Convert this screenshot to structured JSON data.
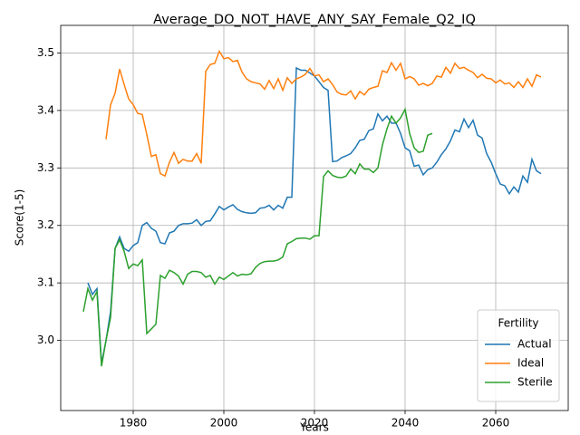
{
  "chart_data": {
    "type": "line",
    "title": "Average_DO_NOT_HAVE_ANY_SAY_Female_Q2_IQ",
    "x_label": "Years",
    "y_label": "Score(1-5)",
    "legend_title": "Fertility",
    "legend_position": "lower right",
    "grid": true,
    "xlim": [
      1964,
      2076
    ],
    "xticks": [
      1980,
      2000,
      2020,
      2040,
      2060
    ],
    "ylim": [
      2.878,
      3.548
    ],
    "yticks": [
      {
        "value": 3,
        "label": "3.0"
      },
      3.1,
      3.2,
      3.3,
      3.4,
      3.5
    ],
    "x": [
      1969,
      1970,
      1971,
      1972,
      1973,
      1974,
      1975,
      1976,
      1977,
      1978,
      1979,
      1980,
      1981,
      1982,
      1983,
      1984,
      1985,
      1986,
      1987,
      1988,
      1989,
      1990,
      1991,
      1992,
      1993,
      1994,
      1995,
      1996,
      1997,
      1998,
      1999,
      2000,
      2001,
      2002,
      2003,
      2004,
      2005,
      2006,
      2007,
      2008,
      2009,
      2010,
      2011,
      2012,
      2013,
      2014,
      2015,
      2016,
      2017,
      2018,
      2019,
      2020,
      2021,
      2022,
      2023,
      2024,
      2025,
      2026,
      2027,
      2028,
      2029,
      2030,
      2031,
      2032,
      2033,
      2034,
      2035,
      2036,
      2037,
      2038,
      2039,
      2040,
      2041,
      2042,
      2043,
      2044,
      2045,
      2046,
      2047,
      2048,
      2049,
      2050,
      2051,
      2052,
      2053,
      2054,
      2055,
      2056,
      2057,
      2058,
      2059,
      2060,
      2061,
      2062,
      2063,
      2064,
      2065,
      2066,
      2067,
      2068,
      2069,
      2070
    ],
    "series": [
      {
        "name": "Actual",
        "color": "#1f77b4",
        "values": [
          null,
          3.1,
          3.08,
          3.09,
          2.96,
          3.0,
          3.05,
          3.16,
          3.18,
          3.16,
          3.155,
          3.165,
          3.17,
          3.2,
          3.205,
          3.195,
          3.19,
          3.17,
          3.168,
          3.187,
          3.19,
          3.2,
          3.203,
          3.203,
          3.204,
          3.21,
          3.2,
          3.207,
          3.208,
          3.22,
          3.233,
          3.227,
          3.232,
          3.236,
          3.228,
          3.224,
          3.222,
          3.221,
          3.222,
          3.23,
          3.231,
          3.235,
          3.227,
          3.235,
          3.23,
          3.249,
          3.249,
          3.474,
          3.47,
          3.47,
          3.465,
          3.46,
          3.45,
          3.44,
          3.435,
          3.311,
          3.312,
          3.318,
          3.321,
          3.325,
          3.335,
          3.348,
          3.35,
          3.365,
          3.368,
          3.394,
          3.382,
          3.39,
          3.378,
          3.378,
          3.36,
          3.335,
          3.33,
          3.303,
          3.305,
          3.288,
          3.297,
          3.3,
          3.31,
          3.323,
          3.333,
          3.347,
          3.366,
          3.363,
          3.385,
          3.37,
          3.383,
          3.357,
          3.352,
          3.325,
          3.31,
          3.29,
          3.272,
          3.269,
          3.255,
          3.267,
          3.258,
          3.286,
          3.275,
          3.315,
          3.295,
          3.29
        ]
      },
      {
        "name": "Ideal",
        "color": "#ff7f0e",
        "values": [
          null,
          null,
          null,
          null,
          null,
          3.35,
          3.41,
          3.43,
          3.472,
          3.445,
          3.42,
          3.41,
          3.395,
          3.393,
          3.358,
          3.32,
          3.323,
          3.29,
          3.286,
          3.31,
          3.327,
          3.308,
          3.315,
          3.312,
          3.312,
          3.325,
          3.308,
          3.468,
          3.48,
          3.482,
          3.503,
          3.49,
          3.492,
          3.485,
          3.487,
          3.467,
          3.455,
          3.45,
          3.448,
          3.446,
          3.437,
          3.452,
          3.438,
          3.455,
          3.435,
          3.457,
          3.447,
          3.455,
          3.458,
          3.463,
          3.473,
          3.46,
          3.462,
          3.45,
          3.455,
          3.445,
          3.432,
          3.428,
          3.427,
          3.434,
          3.42,
          3.433,
          3.427,
          3.437,
          3.44,
          3.442,
          3.469,
          3.466,
          3.483,
          3.47,
          3.482,
          3.455,
          3.459,
          3.455,
          3.444,
          3.447,
          3.443,
          3.447,
          3.46,
          3.458,
          3.475,
          3.465,
          3.482,
          3.473,
          3.475,
          3.47,
          3.466,
          3.457,
          3.463,
          3.456,
          3.455,
          3.448,
          3.453,
          3.446,
          3.448,
          3.44,
          3.45,
          3.44,
          3.455,
          3.442,
          3.462,
          3.458
        ]
      },
      {
        "name": "Sterile",
        "color": "#2ca02c",
        "values": [
          3.05,
          3.09,
          3.07,
          3.085,
          2.955,
          3.0,
          3.04,
          3.16,
          3.175,
          3.155,
          3.125,
          3.133,
          3.13,
          3.14,
          3.012,
          3.02,
          3.028,
          3.113,
          3.108,
          3.122,
          3.118,
          3.112,
          3.098,
          3.115,
          3.12,
          3.12,
          3.118,
          3.11,
          3.113,
          3.098,
          3.11,
          3.106,
          3.112,
          3.118,
          3.112,
          3.115,
          3.114,
          3.116,
          3.127,
          3.134,
          3.137,
          3.138,
          3.138,
          3.14,
          3.145,
          3.168,
          3.172,
          3.177,
          3.178,
          3.178,
          3.176,
          3.182,
          3.182,
          3.285,
          3.295,
          3.287,
          3.284,
          3.283,
          3.286,
          3.298,
          3.29,
          3.307,
          3.298,
          3.298,
          3.292,
          3.3,
          3.34,
          3.368,
          3.39,
          3.378,
          3.387,
          3.402,
          3.36,
          3.335,
          3.327,
          3.329,
          3.357,
          3.36,
          null,
          null,
          null,
          null,
          null,
          null,
          null,
          null,
          null,
          null,
          null,
          null,
          null,
          null,
          null,
          null,
          null,
          null,
          null,
          null,
          null,
          null,
          null,
          null
        ]
      }
    ]
  }
}
